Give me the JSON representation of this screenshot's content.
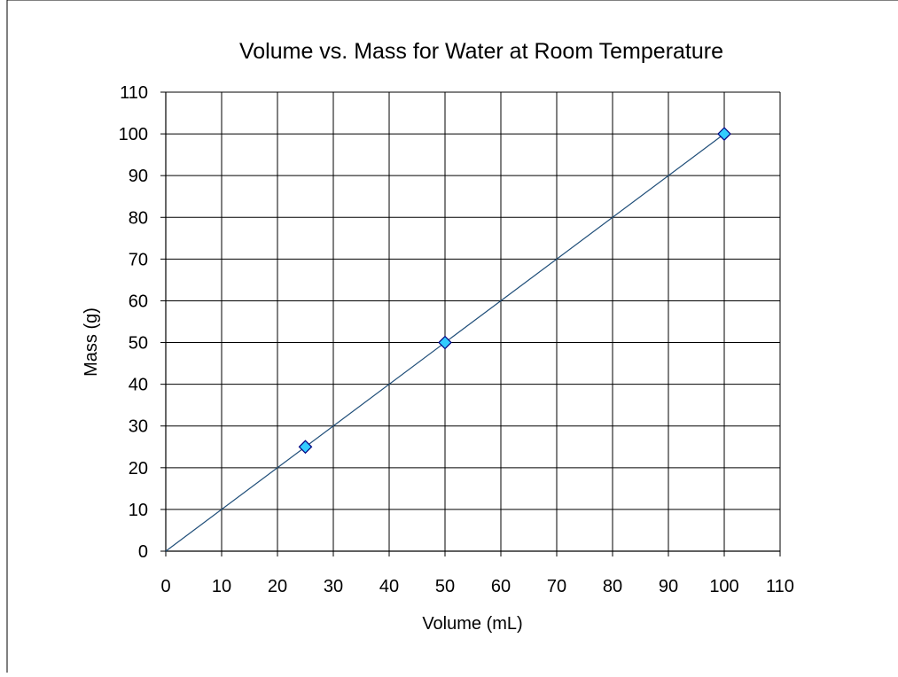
{
  "chart_data": {
    "type": "scatter",
    "title": "Volume vs. Mass for Water at Room Temperature",
    "xlabel": "Volume (mL)",
    "ylabel": "Mass (g)",
    "xlim": [
      0,
      110
    ],
    "ylim": [
      0,
      110
    ],
    "x_ticks": [
      0,
      10,
      20,
      30,
      40,
      50,
      60,
      70,
      80,
      90,
      100,
      110
    ],
    "y_ticks": [
      0,
      10,
      20,
      30,
      40,
      50,
      60,
      70,
      80,
      90,
      100,
      110
    ],
    "grid": true,
    "legend": "none",
    "series": [
      {
        "marker": "diamond",
        "color": "#33ccff",
        "x": [
          25,
          50,
          100
        ],
        "y": [
          25,
          50,
          100
        ]
      }
    ],
    "trendline": {
      "color": "#1f4e79",
      "x": [
        0,
        100
      ],
      "y": [
        0,
        100
      ]
    }
  }
}
